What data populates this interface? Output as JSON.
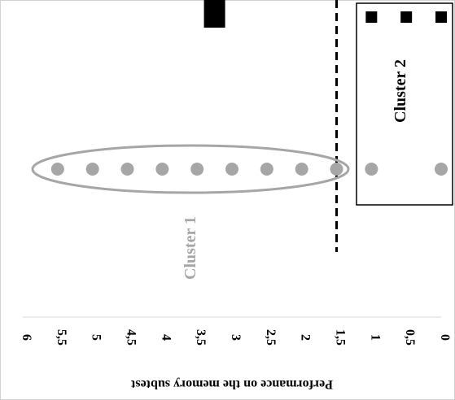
{
  "chart_data": {
    "type": "scatter",
    "orientation": "rotated-90-clockwise",
    "ylabel": "Performance on the memory subtest",
    "ylim": [
      0,
      6
    ],
    "yticks": [
      "0",
      "0,5",
      "1",
      "1,5",
      "2",
      "2,5",
      "3",
      "3,5",
      "4",
      "4,5",
      "5",
      "5,5",
      "6"
    ],
    "threshold": 1.5,
    "clusters": [
      {
        "name": "Cluster 1",
        "color": "#a6a6a6",
        "marker": "circle",
        "y": [
          1.5,
          2,
          2.5,
          3,
          3.5,
          4,
          4.5,
          5,
          5.5
        ]
      },
      {
        "name": "Cluster 2",
        "color": "#000000",
        "marker": "square",
        "y": [
          0,
          0.5,
          1
        ]
      }
    ],
    "other_points": [
      {
        "marker": "circle",
        "color": "#a6a6a6",
        "y": [
          0,
          1
        ]
      },
      {
        "marker": "rect",
        "color": "#000000",
        "y": [
          3.25
        ]
      }
    ]
  }
}
